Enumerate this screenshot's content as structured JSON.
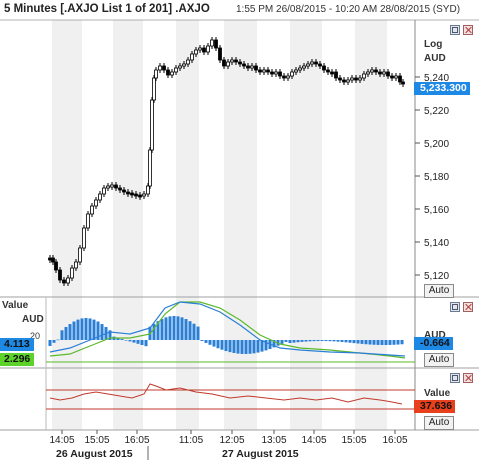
{
  "header": {
    "title": "5 Minutes [.AXJO List 1 of 201] .AXJO",
    "date_range": "1:55 PM 26/08/2015 - 10:20 AM 28/08/2015 (SYD)"
  },
  "price_panel": {
    "scale_label": "Log",
    "currency_label": "AUD",
    "y_ticks": [
      "5,240",
      "5,220",
      "5,200",
      "5,180",
      "5,160",
      "5,140",
      "5,120"
    ],
    "last_price": "5,233.300",
    "auto_label": "Auto"
  },
  "macd_panel": {
    "value_label": "Value",
    "currency_label": "AUD",
    "tick_top": "20",
    "left_value_1": "4.113",
    "left_value_2": "2.296",
    "right_label": "AUD",
    "right_value": "-0.664",
    "auto_label": "Auto"
  },
  "rsi_panel": {
    "value_label": "Value",
    "right_value": "37.636",
    "auto_label": "Auto"
  },
  "x_axis": {
    "ticks": [
      "14:05",
      "15:05",
      "16:05",
      "11:05",
      "12:05",
      "13:05",
      "14:05",
      "15:05",
      "16:05"
    ],
    "dates": [
      "26 August 2015",
      "27 August 2015"
    ]
  },
  "colors": {
    "candle": "#000000",
    "macd_histogram": "#2a7fd6",
    "macd_line": "#2a7fd6",
    "signal_line": "#5cb82a",
    "rsi_line": "#c0392b",
    "price_badge": "#1e88e5",
    "signal_badge": "#5cd22a",
    "rsi_badge": "#e8401c",
    "session_band": "#f0f0f0"
  }
}
